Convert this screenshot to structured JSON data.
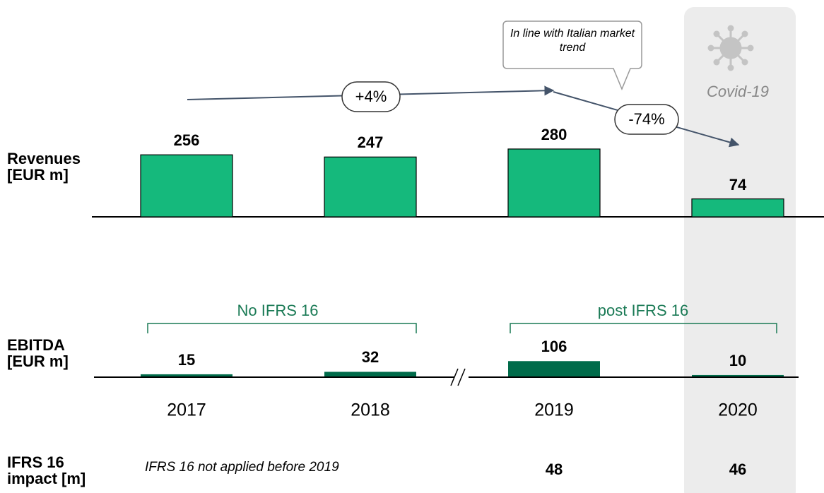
{
  "chart_data": {
    "type": "bar",
    "categories": [
      "2017",
      "2018",
      "2019",
      "2020"
    ],
    "series": [
      {
        "name": "Revenues [EUR m]",
        "color": "#15b97c",
        "values": [
          256,
          247,
          280,
          74
        ]
      },
      {
        "name": "EBITDA [EUR m]",
        "color": "#006b4a",
        "values": [
          15,
          32,
          106,
          10
        ]
      }
    ],
    "ifrs16": {
      "name": "IFRS 16 impact [m]",
      "note": "IFRS 16 not applied before 2019",
      "values": [
        null,
        null,
        48,
        46
      ]
    },
    "annotations": {
      "growth_1": "+4%",
      "growth_2": "-74%",
      "callout": "In line with Italian market trend",
      "covid": "Covid-19",
      "period_1": "No IFRS 16",
      "period_2": "post IFRS 16"
    }
  }
}
